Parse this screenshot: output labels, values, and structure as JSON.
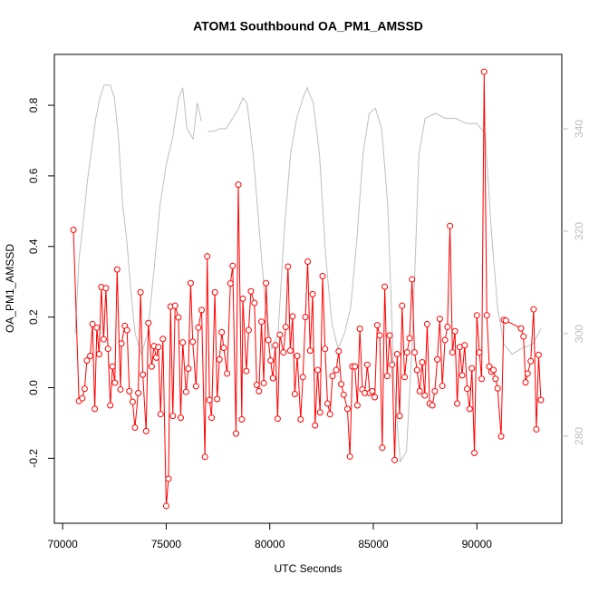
{
  "chart_data": {
    "type": "line",
    "title": "ATOM1 Southbound OA_PM1_AMSSD",
    "xlabel": "UTC Seconds",
    "ylabel": "OA_PM1_AMSSD",
    "xlim": [
      69600,
      94100
    ],
    "xticks": [
      70000,
      75000,
      80000,
      85000,
      90000
    ],
    "ylim": [
      -0.384,
      0.944
    ],
    "yticks": [
      -0.2,
      {
        "value": 0,
        "label": "0.0"
      },
      0.2,
      0.4,
      0.6,
      0.8
    ],
    "y2lim": [
      263,
      354.5
    ],
    "y2ticks": [
      280,
      300,
      320,
      340
    ],
    "series": [
      {
        "color": "#ff0000",
        "markers": true,
        "x": [
          70520,
          70790,
          70950,
          71060,
          71170,
          71330,
          71440,
          71550,
          71650,
          71760,
          71870,
          71980,
          72090,
          72190,
          72300,
          72410,
          72520,
          72630,
          72790,
          72840,
          73000,
          73110,
          73220,
          73380,
          73490,
          73650,
          73760,
          73870,
          74030,
          74140,
          74300,
          74410,
          74520,
          74620,
          74730,
          74840,
          75000,
          75110,
          75210,
          75320,
          75430,
          75590,
          75700,
          75800,
          75960,
          76070,
          76180,
          76280,
          76440,
          76550,
          76710,
          76870,
          76980,
          77090,
          77190,
          77350,
          77460,
          77570,
          77680,
          77780,
          77940,
          78100,
          78210,
          78370,
          78480,
          78650,
          78700,
          78870,
          78980,
          79090,
          79260,
          79370,
          79480,
          79600,
          79710,
          79820,
          79930,
          80040,
          80150,
          80270,
          80380,
          80490,
          80660,
          80770,
          80880,
          80990,
          81100,
          81210,
          81330,
          81490,
          81600,
          81720,
          81830,
          81950,
          82070,
          82190,
          82310,
          82430,
          82550,
          82670,
          82790,
          82910,
          83030,
          83210,
          83330,
          83450,
          83570,
          83750,
          83870,
          83990,
          84110,
          84230,
          84350,
          84470,
          84590,
          84710,
          84830,
          84950,
          85070,
          85190,
          85310,
          85430,
          85550,
          85670,
          85790,
          85910,
          86030,
          86150,
          86270,
          86390,
          86510,
          86630,
          86750,
          86870,
          86990,
          87110,
          87240,
          87360,
          87480,
          87600,
          87720,
          87850,
          87970,
          88090,
          88210,
          88330,
          88460,
          88580,
          88700,
          88820,
          88940,
          89050,
          89170,
          89290,
          89410,
          89530,
          89650,
          89760,
          89880,
          90000,
          90120,
          90230,
          90350,
          90480,
          90600,
          90700,
          90800,
          90900,
          91000,
          91170,
          91300,
          91400,
          92130,
          92250,
          92350,
          92450,
          92600,
          92740,
          92870,
          92980,
          93090
        ],
        "values": [
          0.447,
          -0.038,
          -0.03,
          -0.003,
          0.077,
          0.09,
          0.18,
          -0.06,
          0.17,
          0.095,
          0.285,
          0.137,
          0.282,
          0.11,
          -0.05,
          0.06,
          0.014,
          0.335,
          -0.005,
          0.125,
          0.175,
          0.163,
          -0.01,
          -0.04,
          -0.113,
          -0.015,
          0.27,
          0.037,
          -0.123,
          0.183,
          0.06,
          0.118,
          0.085,
          0.115,
          -0.075,
          0.138,
          -0.335,
          -0.258,
          0.23,
          -0.08,
          0.232,
          0.199,
          -0.085,
          0.128,
          -0.012,
          0.054,
          0.296,
          0.13,
          0.004,
          0.17,
          0.22,
          -0.196,
          0.372,
          -0.035,
          -0.085,
          0.27,
          -0.032,
          0.08,
          0.157,
          0.113,
          0.04,
          0.295,
          0.345,
          -0.13,
          0.575,
          -0.09,
          0.252,
          0.047,
          0.163,
          0.273,
          0.24,
          0.008,
          -0.01,
          0.187,
          0.013,
          0.296,
          0.135,
          0.077,
          0.027,
          0.12,
          -0.088,
          0.15,
          0.1,
          0.172,
          0.343,
          0.105,
          0.202,
          -0.018,
          0.09,
          -0.09,
          0.03,
          0.2,
          0.357,
          0.105,
          0.265,
          -0.107,
          0.05,
          -0.07,
          0.316,
          0.11,
          -0.045,
          -0.075,
          0.033,
          0.05,
          0.103,
          0.01,
          -0.02,
          -0.06,
          -0.195,
          0.06,
          0.06,
          -0.05,
          0.167,
          -0.005,
          -0.015,
          0.065,
          -0.015,
          -0.01,
          -0.027,
          0.177,
          0.148,
          -0.17,
          0.286,
          0.033,
          0.148,
          0.065,
          -0.205,
          0.095,
          -0.08,
          0.232,
          0.03,
          0.1,
          0.14,
          0.307,
          0.1,
          0.05,
          -0.01,
          0.072,
          -0.022,
          0.18,
          -0.045,
          -0.05,
          -0.01,
          0.08,
          0.195,
          0.005,
          0.135,
          0.172,
          0.458,
          0.1,
          0.16,
          -0.045,
          0.115,
          0.035,
          0.12,
          -0.003,
          -0.06,
          0.055,
          -0.185,
          0.205,
          0.1,
          0.025,
          0.895,
          0.205,
          0.06,
          0.045,
          0.05,
          0.025,
          -0.002,
          -0.138,
          0.192,
          0.19,
          0.168,
          0.145,
          0.015,
          0.04,
          0.075,
          0.222,
          -0.118,
          0.093,
          -0.035
        ]
      },
      {
        "color": "#bebebe",
        "axis": "y2",
        "markers": false,
        "x": [
          70600,
          70800,
          71000,
          71200,
          71400,
          71600,
          71800,
          72000,
          72300,
          72500,
          72700,
          72900,
          73100,
          73300,
          73500,
          73800,
          74100,
          74400,
          74700,
          75000,
          75300,
          75600,
          75800,
          76000,
          76300,
          76500,
          76700,
          76800,
          77000,
          77300,
          77600,
          77900,
          78200,
          78500,
          78700,
          78900,
          79200,
          79500,
          79800,
          80100,
          80400,
          80700,
          81000,
          81300,
          81600,
          81800,
          82100,
          82400,
          82700,
          83000,
          83300,
          83600,
          83900,
          84200,
          84500,
          84800,
          85100,
          85400,
          85700,
          86000,
          86300,
          86600,
          86900,
          87200,
          87500,
          88000,
          88500,
          89000,
          89500,
          90000,
          90400,
          90700,
          91000,
          91300,
          91700,
          92100,
          92700,
          93100
        ],
        "values": [
          300,
          315,
          322,
          330,
          336,
          342,
          346,
          348.5,
          348.5,
          346,
          338,
          325,
          318,
          308,
          300,
          296,
          300,
          312,
          325,
          333,
          338,
          346,
          348,
          340,
          338,
          345,
          341.5,
          null,
          339.5,
          339.5,
          340,
          340,
          342,
          344,
          346,
          345,
          335,
          320,
          305,
          297,
          300,
          320,
          335,
          342,
          346,
          348,
          345,
          335,
          315,
          302,
          297,
          300,
          305,
          318,
          335,
          343,
          344,
          340,
          325,
          290,
          275,
          277,
          300,
          335,
          342,
          343,
          342,
          342,
          341,
          341,
          339,
          320,
          305,
          298,
          296,
          297,
          298,
          301
        ]
      }
    ]
  }
}
